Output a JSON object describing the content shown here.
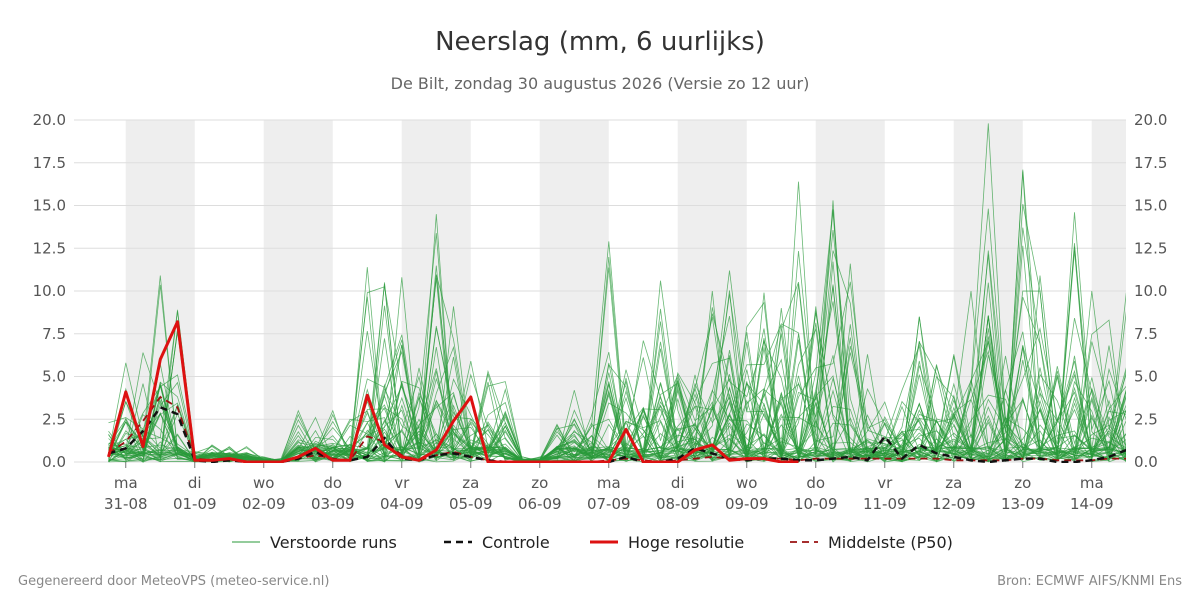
{
  "chart_data": {
    "type": "line",
    "title": "Neerslag (mm, 6 uurlijks)",
    "subtitle": "De Bilt, zondag 30 augustus 2026 (Versie zo 12 uur)",
    "ylim": [
      0,
      20
    ],
    "yticks": [
      "0.0",
      "2.5",
      "5.0",
      "7.5",
      "10.0",
      "12.5",
      "15.0",
      "17.5",
      "20.0"
    ],
    "grid": true,
    "legend_position": "bottom",
    "x_start": "2026-08-30 18:00",
    "x_step_hours": 6,
    "day_labels": [
      {
        "day": "ma",
        "date": "31-08"
      },
      {
        "day": "di",
        "date": "01-09"
      },
      {
        "day": "wo",
        "date": "02-09"
      },
      {
        "day": "do",
        "date": "03-09"
      },
      {
        "day": "vr",
        "date": "04-09"
      },
      {
        "day": "za",
        "date": "05-09"
      },
      {
        "day": "zo",
        "date": "06-09"
      },
      {
        "day": "ma",
        "date": "07-09"
      },
      {
        "day": "di",
        "date": "08-09"
      },
      {
        "day": "wo",
        "date": "09-09"
      },
      {
        "day": "do",
        "date": "10-09"
      },
      {
        "day": "vr",
        "date": "11-09"
      },
      {
        "day": "za",
        "date": "12-09"
      },
      {
        "day": "zo",
        "date": "13-09"
      },
      {
        "day": "ma",
        "date": "14-09"
      }
    ],
    "series": [
      {
        "name": "Hoge resolutie",
        "color": "#dd1111",
        "values": [
          0.3,
          4.1,
          0.9,
          6.0,
          8.2,
          0.1,
          0.1,
          0.2,
          0.0,
          0.0,
          0.0,
          0.3,
          0.8,
          0.1,
          0.1,
          3.9,
          1.0,
          0.3,
          0.1,
          0.7,
          2.4,
          3.8,
          0.0,
          0.0,
          0.0,
          0.0,
          0.0,
          0.0,
          0.0,
          0.0,
          1.9,
          0.0,
          0.0,
          0.0,
          0.7,
          1.0,
          0.1,
          0.2,
          0.2,
          0.0,
          0.0
        ]
      },
      {
        "name": "Controle",
        "color": "#111111",
        "values": [
          0.5,
          0.8,
          1.8,
          3.2,
          2.8,
          0.1,
          0.0,
          0.1,
          0.0,
          0.0,
          0.0,
          0.2,
          0.6,
          0.1,
          0.1,
          0.3,
          1.4,
          0.2,
          0.1,
          0.4,
          0.5,
          0.3,
          0.1,
          0.0,
          0.0,
          0.0,
          0.0,
          0.0,
          0.0,
          0.0,
          0.3,
          0.0,
          0.0,
          0.2,
          0.8,
          0.5,
          0.2,
          0.1,
          0.2,
          0.2,
          0.1,
          0.1,
          0.2,
          0.3,
          0.1,
          1.5,
          0.2,
          1.0,
          0.5,
          0.3,
          0.1,
          0.0,
          0.1,
          0.2,
          0.2,
          0.0,
          0.0,
          0.1,
          0.3,
          0.7,
          0.2,
          0.1,
          0.1,
          0.6,
          0.1,
          0.0,
          0.0,
          0.1,
          0.1,
          0.1
        ]
      },
      {
        "name": "Middelste (P50)",
        "color": "#991111",
        "values": [
          0.5,
          1.2,
          2.4,
          3.8,
          3.2,
          0.2,
          0.1,
          0.1,
          0.0,
          0.0,
          0.0,
          0.2,
          0.4,
          0.2,
          0.1,
          1.5,
          1.2,
          0.4,
          0.1,
          0.4,
          0.6,
          0.3,
          0.1,
          0.0,
          0.0,
          0.0,
          0.0,
          0.0,
          0.0,
          0.1,
          0.2,
          0.1,
          0.0,
          0.1,
          0.2,
          0.3,
          0.2,
          0.2,
          0.2,
          0.2,
          0.1,
          0.2,
          0.2,
          0.2,
          0.2,
          0.2,
          0.2,
          0.2,
          0.2,
          0.1,
          0.1,
          0.1,
          0.1,
          0.2,
          0.2,
          0.1,
          0.1,
          0.1,
          0.2,
          0.2,
          0.1,
          0.1,
          0.1,
          0.2,
          0.1,
          0.1,
          0.1,
          0.1,
          0.1,
          0.1
        ]
      },
      {
        "name": "Verstoorde runs",
        "color": "#2a9a3a",
        "member_count": 50,
        "peaks": [
          [
            0,
            2.3
          ],
          [
            1,
            5.8
          ],
          [
            2,
            6.4
          ],
          [
            3,
            10.9
          ],
          [
            4,
            8.9
          ],
          [
            5,
            0.6
          ],
          [
            6,
            1.0
          ],
          [
            7,
            0.9
          ],
          [
            8,
            0.9
          ],
          [
            10,
            0.2
          ],
          [
            11,
            3.0
          ],
          [
            12,
            2.6
          ],
          [
            13,
            3.0
          ],
          [
            14,
            2.5
          ],
          [
            15,
            11.4
          ],
          [
            16,
            10.5
          ],
          [
            17,
            10.8
          ],
          [
            18,
            5.5
          ],
          [
            19,
            14.5
          ],
          [
            20,
            9.1
          ],
          [
            21,
            5.9
          ],
          [
            22,
            5.3
          ],
          [
            23,
            4.7
          ],
          [
            26,
            2.2
          ],
          [
            27,
            4.2
          ],
          [
            28,
            2.7
          ],
          [
            29,
            12.9
          ],
          [
            30,
            5.4
          ],
          [
            31,
            7.1
          ],
          [
            32,
            10.6
          ],
          [
            33,
            5.2
          ],
          [
            34,
            5.1
          ],
          [
            35,
            10.0
          ],
          [
            36,
            11.2
          ],
          [
            37,
            7.9
          ],
          [
            38,
            9.9
          ],
          [
            39,
            9.0
          ],
          [
            40,
            16.4
          ],
          [
            41,
            9.1
          ],
          [
            42,
            15.3
          ],
          [
            43,
            11.6
          ],
          [
            44,
            6.3
          ],
          [
            45,
            3.5
          ],
          [
            46,
            4.2
          ],
          [
            47,
            8.5
          ],
          [
            48,
            5.7
          ],
          [
            49,
            6.3
          ],
          [
            50,
            10.0
          ],
          [
            51,
            19.8
          ],
          [
            52,
            6.2
          ],
          [
            53,
            17.1
          ],
          [
            54,
            10.9
          ],
          [
            55,
            5.6
          ],
          [
            56,
            14.6
          ],
          [
            57,
            10.0
          ],
          [
            58,
            8.3
          ],
          [
            59,
            9.9
          ],
          [
            60,
            5.1
          ],
          [
            61,
            6.2
          ]
        ]
      }
    ]
  },
  "legend": {
    "perturbed": "Verstoorde runs",
    "control": "Controle",
    "highres": "Hoge resolutie",
    "median": "Middelste (P50)"
  },
  "footer": {
    "left": "Gegenereerd door MeteoVPS (meteo-service.nl)",
    "right": "Bron: ECMWF AIFS/KNMI Ens"
  },
  "colors": {
    "weekend_band": "#eeeeee",
    "grid": "#dddddd",
    "perturbed": "#2a9a3a",
    "control": "#111111",
    "highres": "#dd1111",
    "median": "#991111"
  }
}
